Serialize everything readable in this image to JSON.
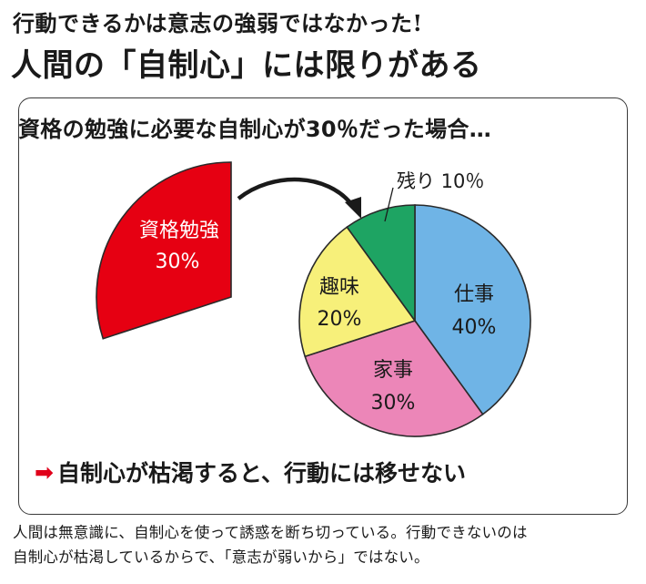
{
  "header": {
    "subtitle": "行動できるかは意志の強弱ではなかった!",
    "title": "人間の「自制心」には限りがある"
  },
  "panel": {
    "heading": "資格の勉強に必要な自制心が30％だった場合…",
    "conclusion_arrow": "➡",
    "conclusion": "自制心が枯渇すると、行動には移せない"
  },
  "footnote": {
    "line1": "人間は無意識に、自制心を使って誘惑を断ち切っている。行動できないのは",
    "line2": "自制心が枯渇しているからで、「意志が弱いから」ではない。"
  },
  "chart_data": {
    "type": "pie",
    "removed_slice": {
      "label": "資格勉強",
      "value_label": "30%",
      "value": 30,
      "color": "#e60012"
    },
    "slices": [
      {
        "label": "仕事",
        "value_label": "40%",
        "value": 40,
        "color": "#6fb4e6"
      },
      {
        "label": "家事",
        "value_label": "30%",
        "value": 30,
        "color": "#ec86b8"
      },
      {
        "label": "趣味",
        "value_label": "20%",
        "value": 20,
        "color": "#f7f07a"
      },
      {
        "label": "残り",
        "value_label": "10％",
        "value": 10,
        "color": "#1ea463"
      }
    ]
  }
}
